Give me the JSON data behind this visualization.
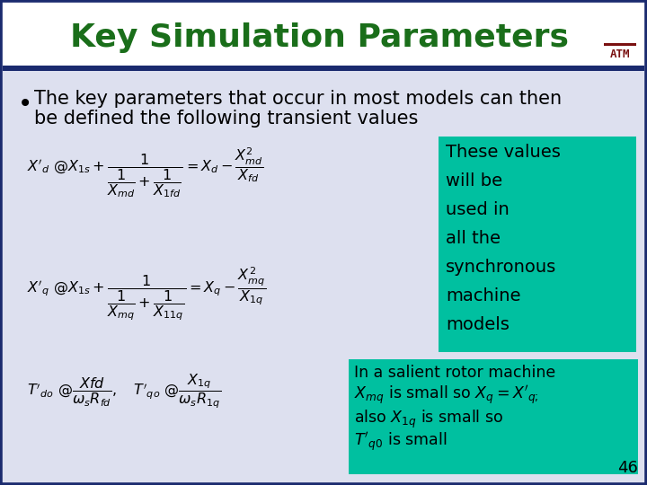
{
  "title": "Key Simulation Parameters",
  "title_color": "#1a6e1a",
  "title_fontsize": 26,
  "bg_color": "#dde0ef",
  "slide_bg": "#dde0ef",
  "bullet_text_line1": "The key parameters that occur in most models can then",
  "bullet_text_line2": "be defined the following transient values",
  "bullet_fontsize": 15,
  "teal_color": "#00c0a0",
  "teal_text_1_lines": [
    "These values",
    "will be",
    "used in",
    "all the",
    "synchronous",
    "machine",
    "models"
  ],
  "teal_text_2_line1": "In a salient rotor machine",
  "teal_text_2_line2": "X",
  "page_number": "46",
  "dark_navy": "#1a2a6e",
  "header_bg": "#ffffff",
  "maroon": "#7a1010",
  "border_navy": "#1a2a6e"
}
